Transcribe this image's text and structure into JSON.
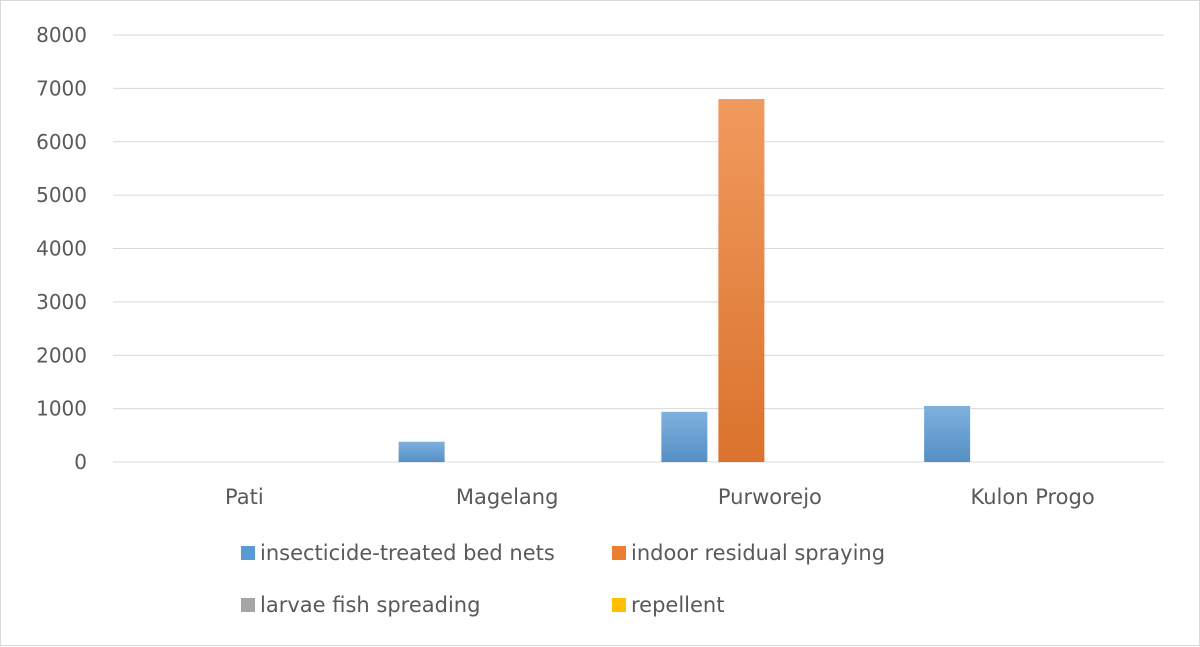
{
  "chart_data": {
    "type": "bar",
    "categories": [
      "Pati",
      "Magelang",
      "Purworejo",
      "Kulon Progo"
    ],
    "series": [
      {
        "name": "insecticide-treated bed nets",
        "color": "#5B9BD5",
        "values": [
          0,
          380,
          940,
          1050
        ]
      },
      {
        "name": "indoor residual spraying",
        "color": "#ED7D31",
        "values": [
          0,
          0,
          6800,
          0
        ]
      },
      {
        "name": "larvae fish spreading",
        "color": "#A5A5A5",
        "values": [
          0,
          0,
          0,
          0
        ]
      },
      {
        "name": "repellent",
        "color": "#FFC000",
        "values": [
          0,
          0,
          0,
          0
        ]
      }
    ],
    "yticks": [
      "0",
      "1000",
      "2000",
      "3000",
      "4000",
      "5000",
      "6000",
      "7000",
      "8000"
    ],
    "ylim": [
      0,
      8000
    ],
    "grid": true,
    "legend_position": "bottom",
    "title": "",
    "xlabel": "",
    "ylabel": ""
  }
}
